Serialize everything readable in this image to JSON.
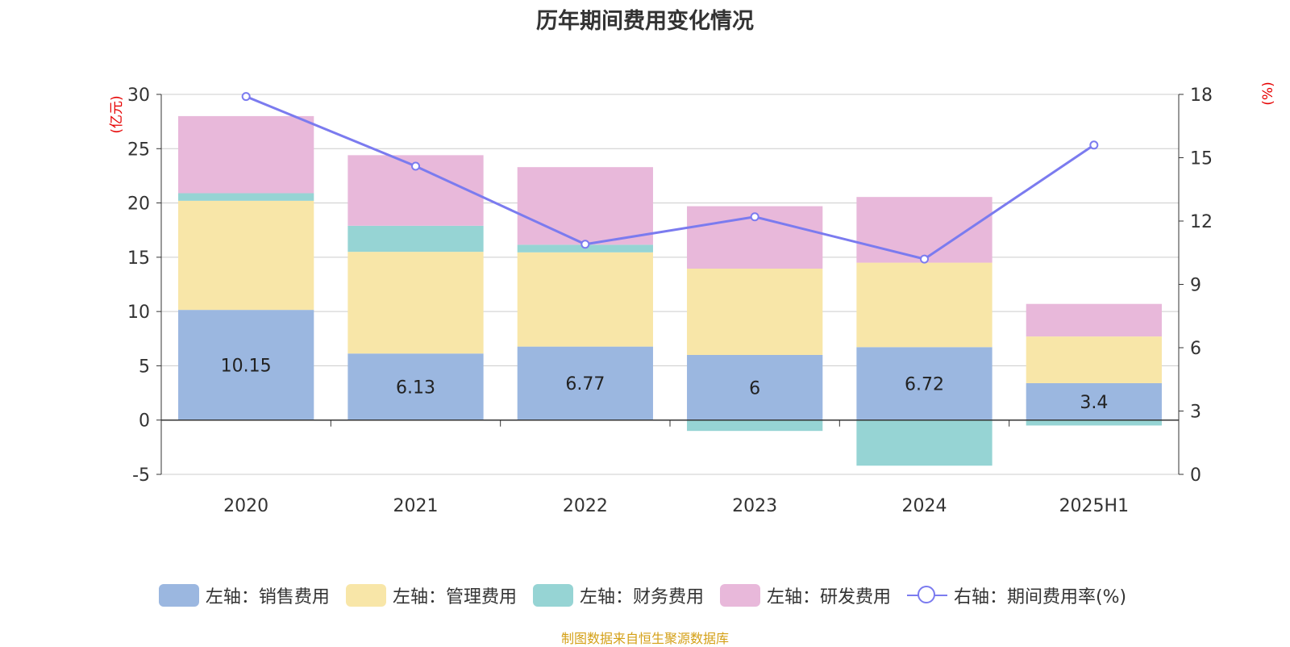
{
  "title": "历年期间费用变化情况",
  "source_note": "制图数据来自恒生聚源数据库",
  "chart_data": {
    "type": "bar",
    "stacked": true,
    "categories": [
      "2020",
      "2021",
      "2022",
      "2023",
      "2024",
      "2025H1"
    ],
    "left_axis": {
      "unit": "(亿元)",
      "ylim": [
        -5,
        30
      ],
      "ticks": [
        30,
        25,
        20,
        15,
        10,
        5,
        0,
        -5
      ]
    },
    "right_axis": {
      "unit": "(%)",
      "ylim": [
        0,
        18
      ],
      "ticks": [
        18,
        15,
        12,
        9,
        6,
        3,
        0
      ]
    },
    "grid": true,
    "legend_position": "bottom",
    "series": [
      {
        "name": "左轴：销售费用",
        "color": "#9bb7e0",
        "type": "bar",
        "values": [
          10.15,
          6.13,
          6.77,
          6,
          6.72,
          3.4
        ],
        "labels": [
          "10.15",
          "6.13",
          "6.77",
          "6",
          "6.72",
          "3.4"
        ]
      },
      {
        "name": "左轴：管理费用",
        "color": "#f8e6a8",
        "type": "bar",
        "values": [
          10.05,
          9.37,
          8.68,
          7.95,
          7.78,
          4.3
        ]
      },
      {
        "name": "左轴：财务费用",
        "color": "#96d4d4",
        "type": "bar",
        "values": [
          0.7,
          2.4,
          0.7,
          -1.0,
          -4.2,
          -0.5
        ]
      },
      {
        "name": "左轴：研发费用",
        "color": "#e8b8da",
        "type": "bar",
        "values": [
          7.1,
          6.5,
          7.15,
          5.75,
          6.05,
          3.0
        ]
      },
      {
        "name": "右轴：期间费用率(%)",
        "color": "#7b7bef",
        "type": "line",
        "axis": "right",
        "values": [
          17.9,
          14.6,
          10.9,
          12.2,
          10.2,
          15.6
        ]
      }
    ]
  }
}
